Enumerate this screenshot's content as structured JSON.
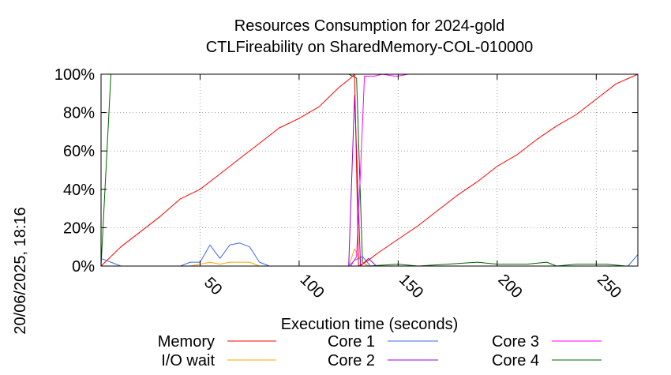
{
  "chart_data": {
    "type": "line",
    "title_line1": "Resources Consumption for 2024-gold",
    "title_line2": "CTLFireability on SharedMemory-COL-010000",
    "xlabel": "Execution time (seconds)",
    "ylabel": "",
    "side_label": "20/06/2025, 18:16",
    "xlim": [
      0,
      271
    ],
    "ylim": [
      0,
      100
    ],
    "x_ticks": [
      50,
      100,
      150,
      200,
      250
    ],
    "y_ticks": [
      0,
      20,
      40,
      60,
      80,
      100
    ],
    "y_tick_labels": [
      "0%",
      "20%",
      "40%",
      "60%",
      "80%",
      "100%"
    ],
    "grid": true,
    "legend_position": "bottom",
    "series": [
      {
        "name": "Memory",
        "color": "#ff0000",
        "points": [
          [
            0,
            0
          ],
          [
            10,
            10
          ],
          [
            20,
            18
          ],
          [
            30,
            26
          ],
          [
            40,
            35
          ],
          [
            50,
            40
          ],
          [
            60,
            48
          ],
          [
            70,
            56
          ],
          [
            80,
            64
          ],
          [
            90,
            72
          ],
          [
            100,
            77
          ],
          [
            110,
            83
          ],
          [
            120,
            93
          ],
          [
            126,
            98
          ],
          [
            128,
            100
          ],
          [
            130,
            0
          ],
          [
            135,
            3
          ],
          [
            140,
            7
          ],
          [
            150,
            14
          ],
          [
            160,
            21
          ],
          [
            170,
            29
          ],
          [
            180,
            37
          ],
          [
            190,
            44
          ],
          [
            200,
            52
          ],
          [
            210,
            58
          ],
          [
            220,
            66
          ],
          [
            230,
            73
          ],
          [
            240,
            79
          ],
          [
            250,
            87
          ],
          [
            260,
            95
          ],
          [
            271,
            100
          ]
        ]
      },
      {
        "name": "I/O wait",
        "color": "#ffa500",
        "points": [
          [
            0,
            0
          ],
          [
            45,
            0
          ],
          [
            50,
            1
          ],
          [
            55,
            2
          ],
          [
            60,
            1
          ],
          [
            65,
            2
          ],
          [
            70,
            2
          ],
          [
            75,
            2
          ],
          [
            80,
            0
          ],
          [
            125,
            0
          ],
          [
            128,
            9
          ],
          [
            131,
            3
          ],
          [
            135,
            0
          ],
          [
            271,
            0
          ]
        ]
      },
      {
        "name": "Core 1",
        "color": "#4169e1",
        "points": [
          [
            0,
            4
          ],
          [
            5,
            2
          ],
          [
            10,
            0
          ],
          [
            40,
            0
          ],
          [
            45,
            2
          ],
          [
            50,
            2
          ],
          [
            55,
            11
          ],
          [
            60,
            4
          ],
          [
            65,
            11
          ],
          [
            70,
            12
          ],
          [
            75,
            10
          ],
          [
            80,
            2
          ],
          [
            85,
            0
          ],
          [
            125,
            0
          ],
          [
            128,
            3
          ],
          [
            132,
            5
          ],
          [
            136,
            0
          ],
          [
            266,
            0
          ],
          [
            271,
            6
          ]
        ]
      },
      {
        "name": "Core 2",
        "color": "#9400d3",
        "points": [
          [
            0,
            0
          ],
          [
            125,
            0
          ],
          [
            128,
            89
          ],
          [
            131,
            0
          ],
          [
            135,
            4
          ],
          [
            139,
            0
          ],
          [
            271,
            0
          ]
        ]
      },
      {
        "name": "Core 3",
        "color": "#ff00ff",
        "points": [
          [
            0,
            0
          ],
          [
            126,
            0
          ],
          [
            129,
            5
          ],
          [
            131,
            50
          ],
          [
            133,
            99
          ],
          [
            138,
            99
          ],
          [
            142,
            100
          ],
          [
            148,
            99
          ],
          [
            150,
            99
          ],
          [
            155,
            100
          ],
          [
            271,
            100
          ]
        ]
      },
      {
        "name": "Core 4",
        "color": "#006400",
        "points": [
          [
            0,
            0
          ],
          [
            5,
            100
          ],
          [
            125,
            100
          ],
          [
            129,
            98
          ],
          [
            132,
            2
          ],
          [
            135,
            0
          ],
          [
            150,
            1
          ],
          [
            160,
            0
          ],
          [
            175,
            1
          ],
          [
            190,
            2
          ],
          [
            200,
            1
          ],
          [
            215,
            1
          ],
          [
            225,
            2
          ],
          [
            230,
            0
          ],
          [
            240,
            1
          ],
          [
            255,
            1
          ],
          [
            265,
            0
          ],
          [
            271,
            0
          ]
        ]
      }
    ]
  }
}
